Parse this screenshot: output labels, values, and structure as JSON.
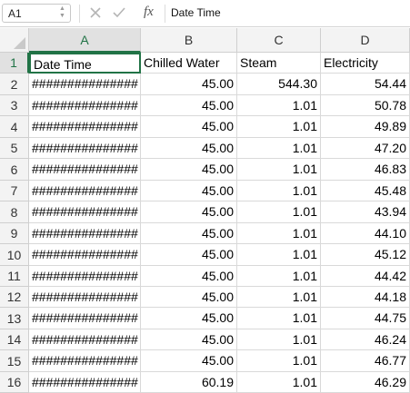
{
  "formula_bar": {
    "cell_reference": "A1",
    "fx_label": "fx",
    "content": "Date Time",
    "icons": [
      "cancel-icon",
      "check-icon"
    ]
  },
  "colors": {
    "accent": "#217346",
    "header_bg": "#f3f3f3",
    "gridline": "#d9d9d9"
  },
  "columns": [
    "A",
    "B",
    "C",
    "D"
  ],
  "rows": [
    {
      "num": "1",
      "cells": [
        "Date Time",
        "Chilled Water",
        "Steam",
        "Electricity"
      ]
    },
    {
      "num": "2",
      "cells": [
        "###############",
        "45.00",
        "544.30",
        "54.44"
      ]
    },
    {
      "num": "3",
      "cells": [
        "###############",
        "45.00",
        "1.01",
        "50.78"
      ]
    },
    {
      "num": "4",
      "cells": [
        "###############",
        "45.00",
        "1.01",
        "49.89"
      ]
    },
    {
      "num": "5",
      "cells": [
        "###############",
        "45.00",
        "1.01",
        "47.20"
      ]
    },
    {
      "num": "6",
      "cells": [
        "###############",
        "45.00",
        "1.01",
        "46.83"
      ]
    },
    {
      "num": "7",
      "cells": [
        "###############",
        "45.00",
        "1.01",
        "45.48"
      ]
    },
    {
      "num": "8",
      "cells": [
        "###############",
        "45.00",
        "1.01",
        "43.94"
      ]
    },
    {
      "num": "9",
      "cells": [
        "###############",
        "45.00",
        "1.01",
        "44.10"
      ]
    },
    {
      "num": "10",
      "cells": [
        "###############",
        "45.00",
        "1.01",
        "45.12"
      ]
    },
    {
      "num": "11",
      "cells": [
        "###############",
        "45.00",
        "1.01",
        "44.42"
      ]
    },
    {
      "num": "12",
      "cells": [
        "###############",
        "45.00",
        "1.01",
        "44.18"
      ]
    },
    {
      "num": "13",
      "cells": [
        "###############",
        "45.00",
        "1.01",
        "44.75"
      ]
    },
    {
      "num": "14",
      "cells": [
        "###############",
        "45.00",
        "1.01",
        "46.24"
      ]
    },
    {
      "num": "15",
      "cells": [
        "###############",
        "45.00",
        "1.01",
        "46.77"
      ]
    },
    {
      "num": "16",
      "cells": [
        "###############",
        "60.19",
        "1.01",
        "46.29"
      ]
    }
  ]
}
